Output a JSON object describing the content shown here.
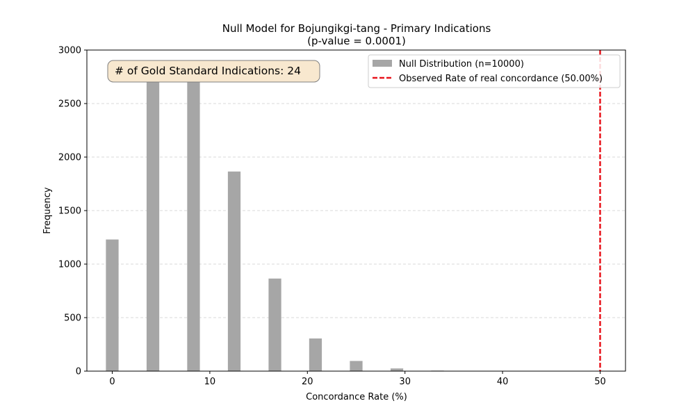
{
  "chart_data": {
    "type": "bar",
    "title": "Null Model for Bojungikgi-tang - Primary Indications",
    "subtitle": "(p-value = 0.0001)",
    "xlabel": "Concordance Rate (%)",
    "ylabel": "Frequency",
    "xlim": [
      -2.6,
      52.6
    ],
    "ylim": [
      0,
      3000
    ],
    "xticks": [
      0,
      10,
      20,
      30,
      40,
      50
    ],
    "yticks": [
      0,
      500,
      1000,
      1500,
      2000,
      2500,
      3000
    ],
    "grid": "y-dashed",
    "bin_width": 1.3,
    "bars": [
      {
        "x": 0.0,
        "value": 1230
      },
      {
        "x": 4.17,
        "value": 2730
      },
      {
        "x": 8.33,
        "value": 2860
      },
      {
        "x": 12.5,
        "value": 1865
      },
      {
        "x": 16.67,
        "value": 865
      },
      {
        "x": 20.83,
        "value": 305
      },
      {
        "x": 25.0,
        "value": 95
      },
      {
        "x": 29.17,
        "value": 25
      },
      {
        "x": 33.33,
        "value": 5
      }
    ],
    "series": [
      {
        "name": "Null Distribution (n=10000)",
        "color": "#a6a6a6"
      },
      {
        "name": "Observed Rate of real concordance (50.00%)",
        "color": "#e8141c",
        "style": "dashed",
        "x": 50
      }
    ],
    "legend_position": "top-right",
    "annotation": "# of Gold Standard Indications: 24",
    "annotation_position": "top-left"
  }
}
